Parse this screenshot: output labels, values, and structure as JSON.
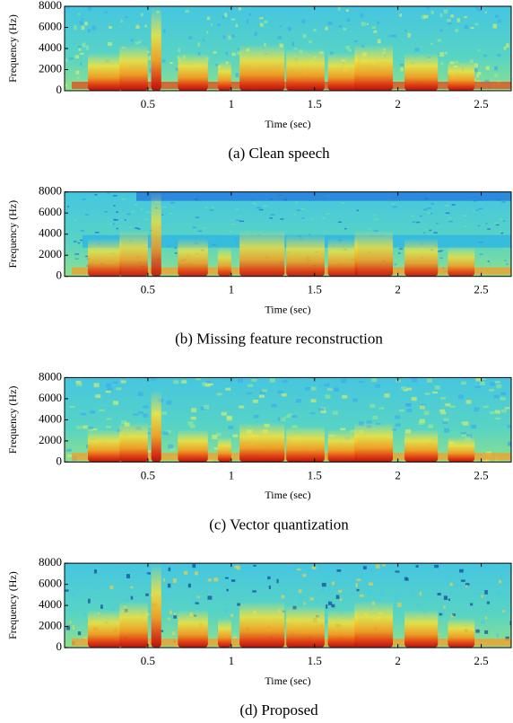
{
  "chart_data": [
    {
      "type": "spectrogram",
      "caption": "(a) Clean speech",
      "xlabel": "Time (sec)",
      "ylabel": "Frequency (Hz)",
      "xlim": [
        0,
        2.68
      ],
      "ylim": [
        0,
        8000
      ],
      "xticks": [
        0.5,
        1,
        1.5,
        2,
        2.5
      ],
      "yticks": [
        0,
        2000,
        4000,
        6000,
        8000
      ]
    },
    {
      "type": "spectrogram",
      "caption": "(b) Missing feature reconstruction",
      "xlabel": "Time (sec)",
      "ylabel": "Frequency (Hz)",
      "xlim": [
        0,
        2.68
      ],
      "ylim": [
        0,
        8000
      ],
      "xticks": [
        0.5,
        1,
        1.5,
        2,
        2.5
      ],
      "yticks": [
        0,
        2000,
        4000,
        6000,
        8000
      ]
    },
    {
      "type": "spectrogram",
      "caption": "(c) Vector quantization",
      "xlabel": "Time (sec)",
      "ylabel": "Frequency (Hz)",
      "xlim": [
        0,
        2.68
      ],
      "ylim": [
        0,
        8000
      ],
      "xticks": [
        0.5,
        1,
        1.5,
        2,
        2.5
      ],
      "yticks": [
        0,
        2000,
        4000,
        6000,
        8000
      ]
    },
    {
      "type": "spectrogram",
      "caption": "(d) Proposed",
      "xlabel": "Time (sec)",
      "ylabel": "Frequency (Hz)",
      "xlim": [
        0,
        2.68
      ],
      "ylim": [
        0,
        8000
      ],
      "xticks": [
        0.5,
        1,
        1.5,
        2,
        2.5
      ],
      "yticks": [
        0,
        2000,
        4000,
        6000,
        8000
      ]
    }
  ]
}
